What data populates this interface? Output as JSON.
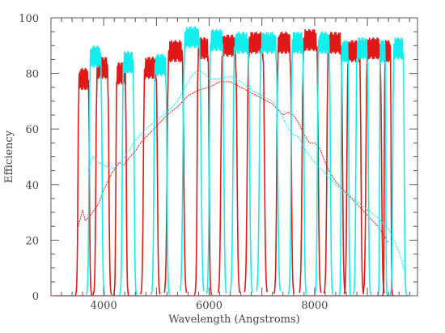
{
  "chart_data": {
    "type": "line",
    "title": "",
    "xlabel": "Wavelength (Angstroms)",
    "ylabel": "Efficiency",
    "xlim": [
      3000,
      9950
    ],
    "ylim": [
      0,
      100
    ],
    "x_ticks": [
      4000,
      6000,
      8000
    ],
    "x_tick_labels": [
      "4000",
      "6000",
      "8000"
    ],
    "y_ticks": [
      0,
      20,
      40,
      60,
      80,
      100
    ],
    "y_tick_labels": [
      "0",
      "20",
      "40",
      "60",
      "80",
      "100"
    ],
    "grid": false,
    "legend": "none",
    "series": [
      {
        "color": "#e01818",
        "style": "filter-bands",
        "bands": [
          {
            "lo": 3510,
            "hi": 3730,
            "peak": 78
          },
          {
            "lo": 3850,
            "hi": 4100,
            "peak": 82
          },
          {
            "lo": 4230,
            "hi": 4430,
            "peak": 80
          },
          {
            "lo": 4750,
            "hi": 5020,
            "peak": 82
          },
          {
            "lo": 5200,
            "hi": 5520,
            "peak": 88
          },
          {
            "lo": 5770,
            "hi": 6000,
            "peak": 89
          },
          {
            "lo": 6220,
            "hi": 6530,
            "peak": 90
          },
          {
            "lo": 6720,
            "hi": 7050,
            "peak": 91
          },
          {
            "lo": 7280,
            "hi": 7560,
            "peak": 91
          },
          {
            "lo": 7760,
            "hi": 8070,
            "peak": 92
          },
          {
            "lo": 8230,
            "hi": 8530,
            "peak": 91
          },
          {
            "lo": 8610,
            "hi": 8880,
            "peak": 88
          },
          {
            "lo": 8970,
            "hi": 9270,
            "peak": 89
          },
          {
            "lo": 9320,
            "hi": 9450,
            "peak": 88
          }
        ],
        "envelope": {
          "x": [
            3500,
            3560,
            3600,
            3650,
            3750,
            3900,
            4000,
            4150,
            4300,
            4380,
            4500,
            4600,
            4700,
            4800,
            4900,
            5000,
            5100,
            5200,
            5400,
            5500,
            5600,
            5800,
            6000,
            6100,
            6200,
            6400,
            6500,
            6600,
            6800,
            7000,
            7200,
            7300,
            7400,
            7500,
            7600,
            7700,
            7800,
            7900,
            8000,
            8100,
            8200,
            8300,
            8400,
            8500,
            8600,
            8700,
            8800,
            8900,
            9000,
            9100,
            9200,
            9300,
            9400
          ],
          "y": [
            24,
            28,
            31,
            27,
            29,
            33,
            38,
            44,
            48,
            47,
            50,
            52,
            55,
            57,
            59,
            61,
            63,
            65,
            68,
            70,
            72,
            74,
            75,
            76,
            77,
            77,
            76,
            75,
            73,
            71,
            69,
            67,
            65,
            66,
            65,
            62,
            58,
            55,
            55,
            53,
            48,
            44,
            41,
            39,
            37,
            35,
            33,
            31,
            29,
            27,
            25,
            22,
            19
          ]
        }
      },
      {
        "color": "#12eeee",
        "style": "filter-bands",
        "bands": [
          {
            "lo": 3720,
            "hi": 3970,
            "peak": 86
          },
          {
            "lo": 4350,
            "hi": 4580,
            "peak": 84
          },
          {
            "lo": 4950,
            "hi": 5200,
            "peak": 83
          },
          {
            "lo": 5500,
            "hi": 5850,
            "peak": 93
          },
          {
            "lo": 6000,
            "hi": 6280,
            "peak": 92
          },
          {
            "lo": 6450,
            "hi": 6770,
            "peak": 91
          },
          {
            "lo": 6950,
            "hi": 7300,
            "peak": 91
          },
          {
            "lo": 7550,
            "hi": 7800,
            "peak": 91
          },
          {
            "lo": 8050,
            "hi": 8300,
            "peak": 91
          },
          {
            "lo": 8500,
            "hi": 8650,
            "peak": 88
          },
          {
            "lo": 8780,
            "hi": 9020,
            "peak": 89
          },
          {
            "lo": 9230,
            "hi": 9350,
            "peak": 88
          },
          {
            "lo": 9480,
            "hi": 9700,
            "peak": 89
          }
        ],
        "envelope": {
          "x": [
            3700,
            3800,
            3900,
            4000,
            4100,
            4200,
            4300,
            4400,
            4500,
            4600,
            4700,
            4800,
            5000,
            5200,
            5400,
            5600,
            5700,
            5800,
            5900,
            6000,
            6200,
            6400,
            6600,
            6800,
            7000,
            7200,
            7300,
            7400,
            7500,
            7600,
            7700,
            7800,
            8000,
            8200,
            8400,
            8600,
            8800,
            9000,
            9200,
            9400,
            9600,
            9700
          ],
          "y": [
            45,
            50,
            48,
            47,
            46,
            46,
            48,
            50,
            53,
            56,
            58,
            60,
            63,
            66,
            70,
            77,
            80,
            81,
            80,
            78,
            78,
            79,
            77,
            74,
            72,
            70,
            68,
            64,
            60,
            58,
            57,
            53,
            48,
            44,
            40,
            37,
            34,
            31,
            28,
            24,
            16,
            9
          ]
        }
      }
    ]
  }
}
